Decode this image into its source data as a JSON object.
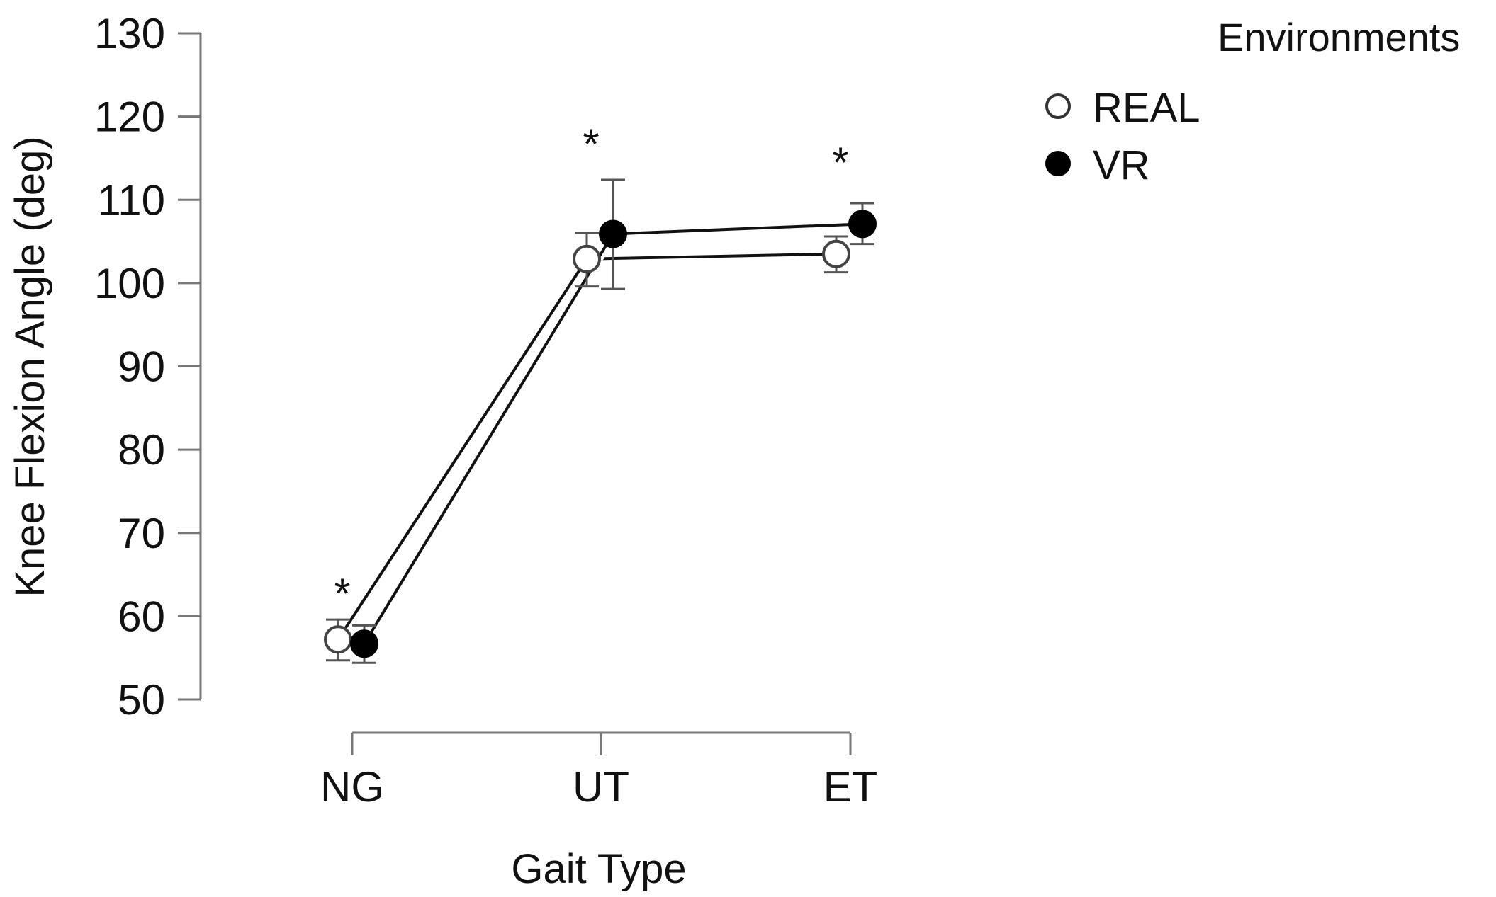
{
  "chart_data": {
    "type": "line",
    "title": "",
    "xlabel": "Gait Type",
    "ylabel": "Knee Flexion Angle (deg)",
    "categories": [
      "NG",
      "UT",
      "ET"
    ],
    "ylim": [
      50,
      130
    ],
    "yticks": [
      50,
      60,
      70,
      80,
      90,
      100,
      110,
      120,
      130
    ],
    "grid": false,
    "legend": {
      "title": "Environments",
      "placement": "top-right"
    },
    "series": [
      {
        "name": "REAL",
        "marker": "open-circle",
        "values": [
          57.2,
          102.9,
          103.5
        ],
        "error_low": [
          54.7,
          99.6,
          101.3
        ],
        "error_high": [
          59.6,
          106.0,
          105.6
        ]
      },
      {
        "name": "VR",
        "marker": "filled-circle",
        "values": [
          56.7,
          105.9,
          107.1
        ],
        "error_low": [
          54.4,
          99.3,
          104.7
        ],
        "error_high": [
          58.9,
          112.4,
          109.6
        ]
      }
    ],
    "annotations": [
      {
        "category": "NG",
        "text": "*",
        "y": 63.5
      },
      {
        "category": "UT",
        "text": "*",
        "y": 117.5
      },
      {
        "category": "ET",
        "text": "*",
        "y": 115.3
      }
    ],
    "colors": {
      "line": "#111111",
      "axis": "#777777",
      "real_fill": "#ffffff",
      "vr_fill": "#000000"
    }
  }
}
